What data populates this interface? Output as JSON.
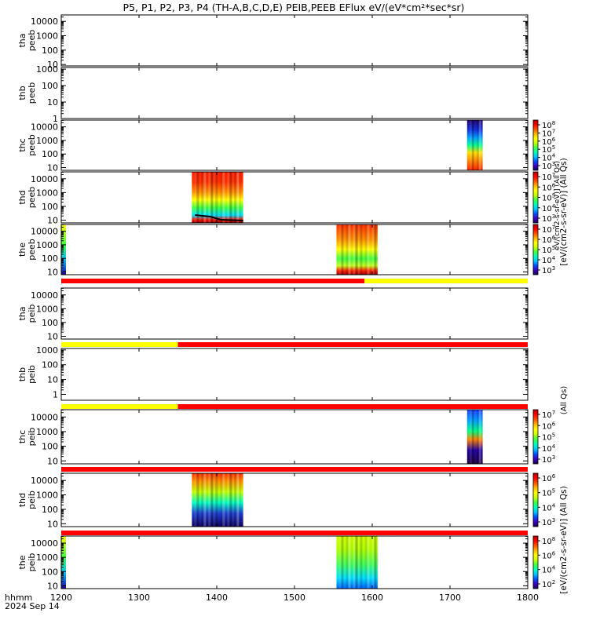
{
  "chart_data": {
    "type": "heatmap",
    "title": "P5, P1, P2, P3, P4 (TH-A,B,C,D,E) PEIB,PEEB EFlux eV/(eV*cm²*sec*sr)",
    "x_axis": {
      "range": [
        1200,
        1800
      ],
      "ticks": [
        "1200",
        "1300",
        "1400",
        "1500",
        "1600",
        "1700",
        "1800"
      ],
      "label_line1": "hhmm",
      "label_line2": "2024 Sep 14"
    },
    "panels": [
      {
        "id": "tha-peeb",
        "label": [
          "tha",
          "peeb"
        ],
        "yticks": [
          "10000",
          "1000",
          "100",
          "10"
        ],
        "yexp": [
          4,
          3,
          2,
          1
        ],
        "yrange": [
          0.9,
          4.45
        ],
        "spectra": []
      },
      {
        "id": "thb-peeb",
        "label": [
          "thb",
          "peeb"
        ],
        "yticks": [
          "1000",
          "100",
          "10",
          "1"
        ],
        "yexp": [
          3,
          2,
          1,
          0
        ],
        "yrange": [
          0,
          3.1
        ],
        "spectra": []
      },
      {
        "id": "thc-peeb",
        "label": [
          "thc",
          "peeb"
        ],
        "yticks": [
          "10000",
          "1000",
          "100",
          "10"
        ],
        "yexp": [
          4,
          3,
          2,
          1
        ],
        "yrange": [
          0.8,
          4.5
        ],
        "spectra": [
          {
            "x0": 1722,
            "x1": 1742,
            "style": "thc-e"
          }
        ]
      },
      {
        "id": "thd-peeb",
        "label": [
          "thd",
          "peeb"
        ],
        "yticks": [
          "10000",
          "1000",
          "100",
          "10"
        ],
        "yexp": [
          4,
          3,
          2,
          1
        ],
        "yrange": [
          0.8,
          4.5
        ],
        "spectra": [
          {
            "x0": 1368,
            "x1": 1434,
            "style": "thd-e"
          }
        ]
      },
      {
        "id": "the-peeb",
        "label": [
          "the",
          "peeb"
        ],
        "yticks": [
          "10000",
          "1000",
          "100",
          "10"
        ],
        "yexp": [
          4,
          3,
          2,
          1
        ],
        "yrange": [
          0.8,
          4.5
        ],
        "spectra": [
          {
            "x0": 1554,
            "x1": 1607,
            "style": "the-e"
          }
        ]
      },
      {
        "id": "tha-peib",
        "label": [
          "tha",
          "peib"
        ],
        "yticks": [
          "10000",
          "1000",
          "100",
          "10"
        ],
        "yexp": [
          4,
          3,
          2,
          1
        ],
        "yrange": [
          0.8,
          4.5
        ],
        "spectra": []
      },
      {
        "id": "thb-peib",
        "label": [
          "thb",
          "peib"
        ],
        "yticks": [
          "1000",
          "100",
          "10",
          "1"
        ],
        "yexp": [
          3,
          2,
          1,
          0
        ],
        "yrange": [
          -0.4,
          3.1
        ],
        "spectra": []
      },
      {
        "id": "thc-peib",
        "label": [
          "thc",
          "peib"
        ],
        "yticks": [
          "10000",
          "1000",
          "100",
          "10"
        ],
        "yexp": [
          4,
          3,
          2,
          1
        ],
        "yrange": [
          0.8,
          4.5
        ],
        "spectra": [
          {
            "x0": 1722,
            "x1": 1742,
            "style": "thc-i"
          }
        ]
      },
      {
        "id": "thd-peib",
        "label": [
          "thd",
          "peib"
        ],
        "yticks": [
          "10000",
          "1000",
          "100",
          "10"
        ],
        "yexp": [
          4,
          3,
          2,
          1
        ],
        "yrange": [
          0.8,
          4.5
        ],
        "spectra": [
          {
            "x0": 1368,
            "x1": 1434,
            "style": "thd-i"
          }
        ]
      },
      {
        "id": "the-peib",
        "label": [
          "the",
          "peib"
        ],
        "yticks": [
          "10000",
          "1000",
          "100",
          "10"
        ],
        "yexp": [
          4,
          3,
          2,
          1
        ],
        "yrange": [
          0.8,
          4.5
        ],
        "spectra": [
          {
            "x0": 1554,
            "x1": 1607,
            "style": "the-i"
          }
        ]
      }
    ],
    "status_bars": [
      {
        "after_panel": "the-peeb",
        "segments": [
          {
            "x0": 1200,
            "x1": 1590,
            "color": "#ff0000"
          },
          {
            "x0": 1590,
            "x1": 1800,
            "color": "#ffff00"
          }
        ]
      },
      {
        "after_panel": "tha-peib",
        "segments": [
          {
            "x0": 1200,
            "x1": 1350,
            "color": "#ffff00"
          },
          {
            "x0": 1350,
            "x1": 1800,
            "color": "#ff0000"
          }
        ]
      },
      {
        "after_panel": "thb-peib",
        "segments": [
          {
            "x0": 1200,
            "x1": 1350,
            "color": "#ffff00"
          },
          {
            "x0": 1350,
            "x1": 1800,
            "color": "#ff0000"
          }
        ]
      },
      {
        "after_panel": "thc-peib",
        "segments": [
          {
            "x0": 1200,
            "x1": 1800,
            "color": "#ff0000"
          }
        ]
      },
      {
        "after_panel": "thd-peib",
        "segments": [
          {
            "x0": 1200,
            "x1": 1800,
            "color": "#ff0000"
          }
        ]
      }
    ],
    "colorbars": [
      {
        "id": "cb-thc-e",
        "panel": "thc-peeb",
        "ticks": [
          "10",
          "10",
          "10",
          "10",
          "10",
          "10"
        ],
        "exps": [
          "8",
          "7",
          "6",
          "5",
          "4",
          "3"
        ]
      },
      {
        "id": "cb-thd-e",
        "panel": "thd-peeb",
        "ticks": [
          "10",
          "10",
          "10",
          "10",
          "10"
        ],
        "exps": [
          "7",
          "6",
          "5",
          "4",
          "3"
        ]
      },
      {
        "id": "cb-the-e",
        "panel": "the-peeb",
        "ticks": [
          "10",
          "10",
          "10",
          "10",
          "10"
        ],
        "exps": [
          "7",
          "6",
          "5",
          "4",
          "3"
        ]
      },
      {
        "id": "cb-thc-i",
        "panel": "thc-peib",
        "ticks": [
          "10",
          "10",
          "10",
          "10",
          "10"
        ],
        "exps": [
          "7",
          "6",
          "5",
          "4",
          "3"
        ]
      },
      {
        "id": "cb-thd-i",
        "panel": "thd-peib",
        "ticks": [
          "10",
          "10",
          "10",
          "10"
        ],
        "exps": [
          "6",
          "5",
          "4",
          "3"
        ]
      },
      {
        "id": "cb-the-i",
        "panel": "the-peib",
        "ticks": [
          "10",
          "10",
          "10",
          "10"
        ],
        "exps": [
          "8",
          "6",
          "4",
          "2"
        ]
      }
    ],
    "colorbar_labels": {
      "electrons": "[eV/(cm2-s-sr-eV)] (All Qs)",
      "electrons_side": "eV/(cm2-s-sr-eV)] (All Qs)",
      "ions_top": "(All Qs)",
      "ions": "[eV/(cm2-s-sr-eV)] (All Qs)"
    },
    "colormap": [
      "#1a0050",
      "#3c00c8",
      "#0050ff",
      "#00c8ff",
      "#00ffb4",
      "#40ff40",
      "#c8ff00",
      "#ffff00",
      "#ffb400",
      "#ff5000",
      "#ff0000",
      "#b40000"
    ]
  }
}
